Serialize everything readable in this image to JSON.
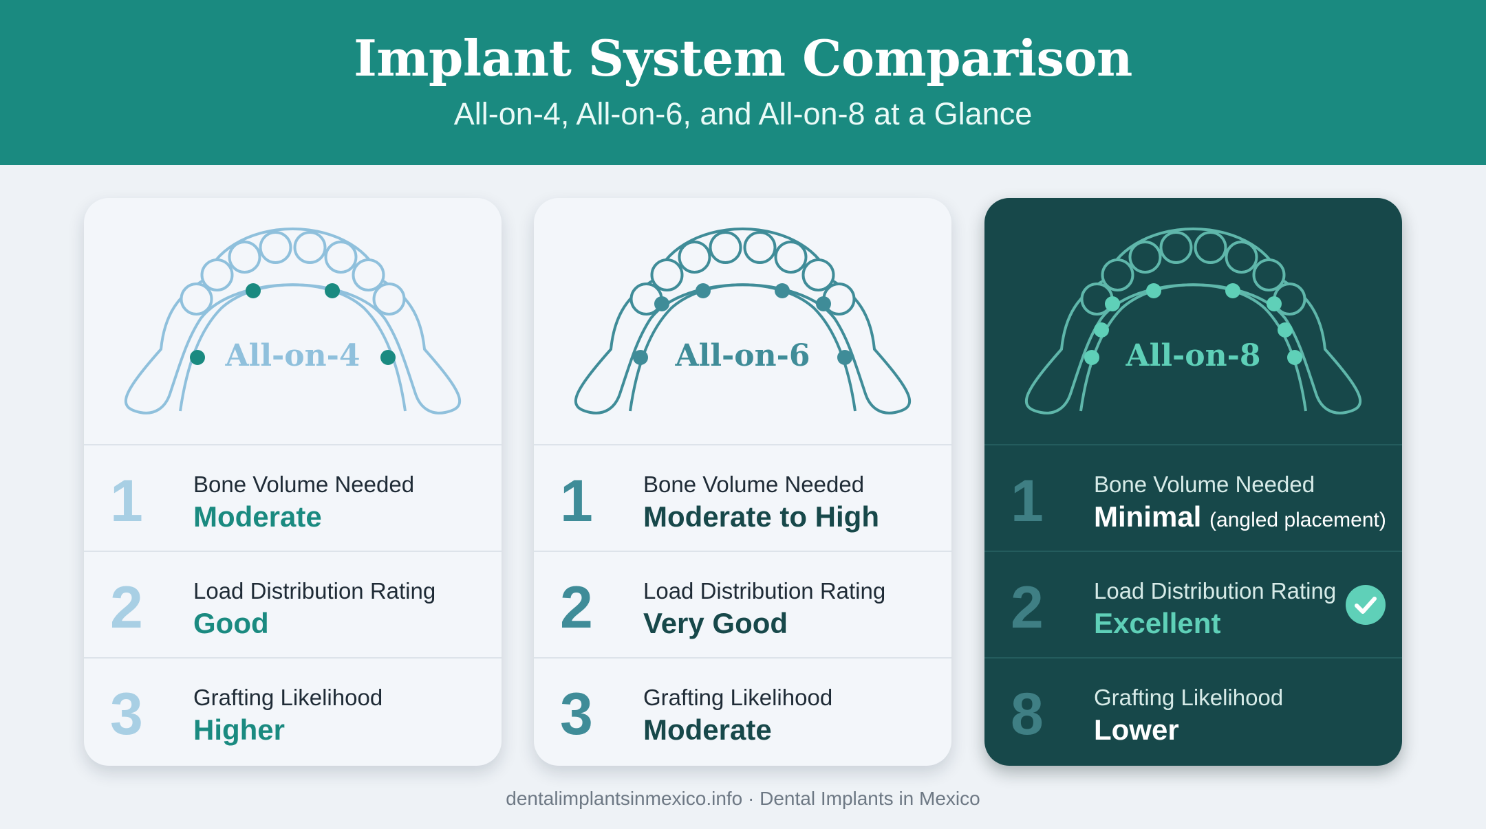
{
  "header": {
    "title": "Implant System Comparison",
    "subtitle": "All-on-4, All-on-6, and All-on-8 at a Glance"
  },
  "cards": [
    {
      "name": "All-on-4",
      "theme": "light",
      "implants": 4,
      "accent": "#1a8a80",
      "rows": [
        {
          "num": "1",
          "label": "Bone Volume Needed",
          "value": "Moderate",
          "note": ""
        },
        {
          "num": "2",
          "label": "Load Distribution Rating",
          "value": "Good",
          "note": ""
        },
        {
          "num": "3",
          "label": "Grafting Likelihood",
          "value": "Higher",
          "note": ""
        }
      ]
    },
    {
      "name": "All-on-6",
      "theme": "light",
      "implants": 6,
      "accent": "#17484a",
      "rows": [
        {
          "num": "1",
          "label": "Bone Volume Needed",
          "value": "Moderate to High",
          "note": ""
        },
        {
          "num": "2",
          "label": "Load Distribution Rating",
          "value": "Very Good",
          "note": ""
        },
        {
          "num": "3",
          "label": "Grafting Likelihood",
          "value": "Moderate",
          "note": ""
        }
      ]
    },
    {
      "name": "All-on-8",
      "theme": "dark",
      "implants": 8,
      "accent": "#5fd0b8",
      "rows": [
        {
          "num": "1",
          "label": "Bone Volume Needed",
          "value": "Minimal",
          "note": "(angled placement)"
        },
        {
          "num": "2",
          "label": "Load Distribution Rating",
          "value": "Excellent",
          "note": "",
          "check": true
        },
        {
          "num": "8",
          "label": "Grafting Likelihood",
          "value": "Lower",
          "note": ""
        }
      ]
    }
  ],
  "colors": {
    "header_bg": "#1a8a80",
    "dark_card_bg": "#17484a",
    "page_bg": "#eef2f6",
    "check": "#5fd0b8"
  },
  "icons": [
    "arch-diagram-icon",
    "implant-dot-icon",
    "check-icon"
  ],
  "footer": "dentalimplantsinmexico.info · Dental Implants in Mexico"
}
